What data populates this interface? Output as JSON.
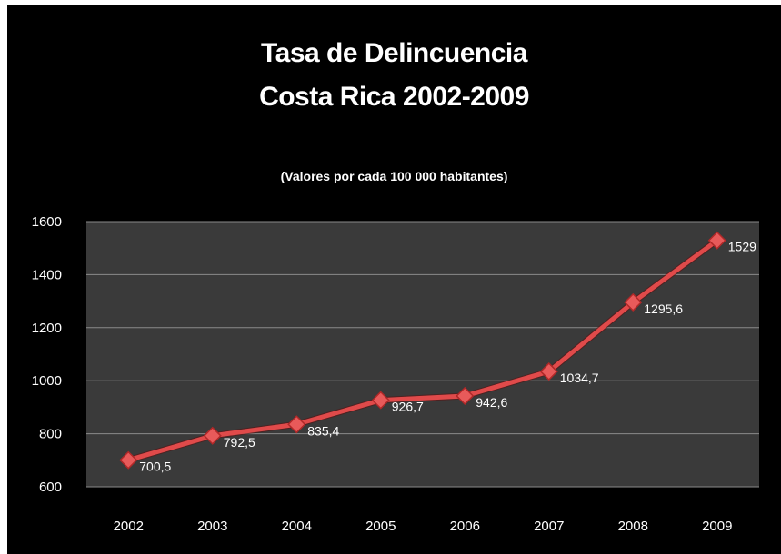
{
  "chart_data": {
    "type": "line",
    "title": "Tasa de Delincuencia",
    "title_line2": "Costa Rica 2002-2009",
    "subtitle": "(Valores por cada 100 000 habitantes)",
    "categories": [
      "2002",
      "2003",
      "2004",
      "2005",
      "2006",
      "2007",
      "2008",
      "2009"
    ],
    "values": [
      700.5,
      792.5,
      835.4,
      926.7,
      942.6,
      1034.7,
      1295.6,
      1529
    ],
    "data_labels": [
      "700,5",
      "792,5",
      "835,4",
      "926,7",
      "942,6",
      "1034,7",
      "1295,6",
      "1529"
    ],
    "ylim": [
      600,
      1600
    ],
    "yticks": [
      600,
      800,
      1000,
      1200,
      1400,
      1600
    ],
    "grid": true,
    "colors": {
      "background": "#000000",
      "plot_area": "#3a3a3a",
      "gridline": "#8a8a8a",
      "line": "#e04a4a",
      "marker": "#e85a5a"
    }
  }
}
